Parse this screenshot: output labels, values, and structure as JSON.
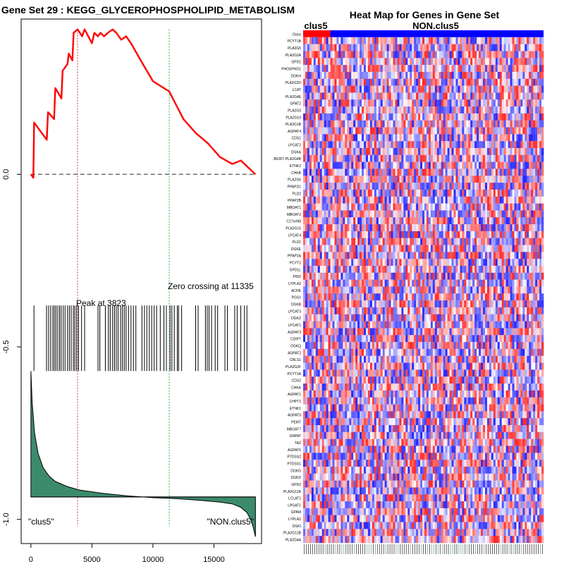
{
  "chart_data": [
    {
      "type": "line",
      "title": "Gene Set  29 : KEGG_GLYCEROPHOSPHOLIPID_METABOLISM",
      "xlabel": "",
      "ylabel": "",
      "xlim": [
        -800,
        18900
      ],
      "ylim": [
        -1.07,
        0.45
      ],
      "x_ticks": [
        0,
        5000,
        10000,
        15000
      ],
      "x_tick_labels": [
        "0",
        "5000",
        "10000",
        "15000"
      ],
      "y_ticks": [
        0.0,
        -0.5,
        -1.0
      ],
      "y_tick_labels": [
        "0.0",
        "-0.5",
        "-1.0"
      ],
      "enrichment_profile": {
        "x": [
          0,
          200,
          260,
          1300,
          1400,
          1900,
          2000,
          2500,
          2600,
          3000,
          3100,
          3400,
          3500,
          3823,
          4200,
          4400,
          5000,
          5200,
          5500,
          5700,
          6000,
          6300,
          6700,
          7000,
          7400,
          7800,
          8200,
          9000,
          10000,
          11335,
          12500,
          13500,
          14500,
          15500,
          16500,
          17200,
          17800,
          18400
        ],
        "y": [
          0.0,
          -0.01,
          0.15,
          0.1,
          0.18,
          0.16,
          0.25,
          0.22,
          0.3,
          0.32,
          0.35,
          0.33,
          0.41,
          0.42,
          0.4,
          0.42,
          0.38,
          0.41,
          0.4,
          0.41,
          0.4,
          0.41,
          0.42,
          0.41,
          0.39,
          0.4,
          0.38,
          0.33,
          0.27,
          0.24,
          0.16,
          0.12,
          0.09,
          0.05,
          0.03,
          0.04,
          0.02,
          0.0
        ],
        "color": "#ff0000"
      },
      "zero_line": {
        "y": 0.0,
        "color": "#555555"
      },
      "peak": {
        "x": 3823,
        "label": "Peak at 3823",
        "color": "#cc3333"
      },
      "zero_crossing": {
        "x": 11335,
        "label": "Zero crossing at 11335",
        "color": "#33aa33"
      },
      "hit_positions": [
        250,
        1280,
        1450,
        1620,
        1800,
        1920,
        2050,
        2200,
        2350,
        2480,
        2650,
        2800,
        3000,
        3150,
        3300,
        3480,
        3600,
        3750,
        3900,
        4150,
        4400,
        5500,
        5650,
        6100,
        6350,
        6500,
        6700,
        6850,
        7000,
        7150,
        7350,
        7500,
        7650,
        7800,
        8000,
        8200,
        8400,
        8600,
        9100,
        9300,
        9500,
        9700,
        9900,
        10100,
        10300,
        10600,
        10900,
        11100,
        11400,
        11550,
        11750,
        12000,
        12100,
        12350,
        13500,
        13700,
        14300,
        14450,
        14600,
        14800,
        15100,
        15300,
        15900,
        16100,
        16700,
        16900,
        17200,
        17500,
        17700
      ],
      "hit_band_y": [
        -0.38,
        -0.57
      ],
      "ranked_metric": {
        "x": [
          0,
          100,
          300,
          600,
          1000,
          1500,
          2000,
          3000,
          4000,
          6000,
          8000,
          10000,
          12000,
          14000,
          15500,
          16500,
          17200,
          17700,
          18000,
          18200,
          18400
        ],
        "y": [
          -0.57,
          -0.66,
          -0.75,
          -0.81,
          -0.85,
          -0.875,
          -0.89,
          -0.905,
          -0.915,
          -0.925,
          -0.932,
          -0.937,
          -0.94,
          -0.945,
          -0.95,
          -0.955,
          -0.965,
          -0.98,
          -1.0,
          -1.02,
          -1.05
        ],
        "baseline": -0.935,
        "color": "#3c8a6c"
      },
      "phenotype_left": "\"clus5\"",
      "phenotype_right": "\"NON.clus5\""
    },
    {
      "type": "heatmap",
      "title": "Heat Map for Genes in Gene Set",
      "class_labels": [
        "clus5",
        "NON.clus5"
      ],
      "class_colors": [
        "#ff0000",
        "#0000ff"
      ],
      "genes": [
        "Class",
        "PCYT1B",
        "PLA2G5",
        "PLA2G2A",
        "GPD1",
        "PHOSPHO1",
        "DGKH",
        "PLA2G2D",
        "LCAT",
        "PLA2G4E",
        "GPAT2",
        "PLA2G3",
        "PLA2G10",
        "PLA2G1B",
        "AGPAT4",
        "CDS1",
        "LPCAT2",
        "DGKA",
        "JMJD7-PLA2G4B",
        "ETNK2",
        "CHKB",
        "PLA2G6",
        "PPAP2C",
        "PLD2",
        "PPAP2B",
        "MBOAT1",
        "MBOAT2",
        "C17orf48",
        "PLA2G15",
        "LPCAT4",
        "PLD1",
        "DGKE",
        "PPAP2A",
        "PCYT2",
        "GPD1L",
        "PISD",
        "LYPLA2",
        "ACHE",
        "PGS1",
        "DGKB",
        "LPCAT3",
        "DGKZ",
        "LPCAT1",
        "AGPAT3",
        "CDIPT",
        "DGKQ",
        "AGPAT2",
        "CRLS1",
        "PLA2G2F",
        "PCYT1A",
        "CDS2",
        "CHKA",
        "AGPAT1",
        "CHPT1",
        "ETNK1",
        "AGPAT9",
        "PEMT",
        "MBOAT7",
        "GNPAT",
        "TAZ",
        "AGPAT6",
        "PTDSS2",
        "PTDSS1",
        "DGKG",
        "DGKD",
        "GPD2",
        "PLA2G12A",
        "LCLAT1",
        "LPGAT1",
        "GPAM",
        "LYPLA1",
        "DGKI",
        "PLA2G12B",
        "PLA2G4A"
      ],
      "n_samples": 115,
      "clus5_samples": 13,
      "colormap": [
        "#0000ff",
        "#ffffff",
        "#ff0000"
      ]
    }
  ]
}
